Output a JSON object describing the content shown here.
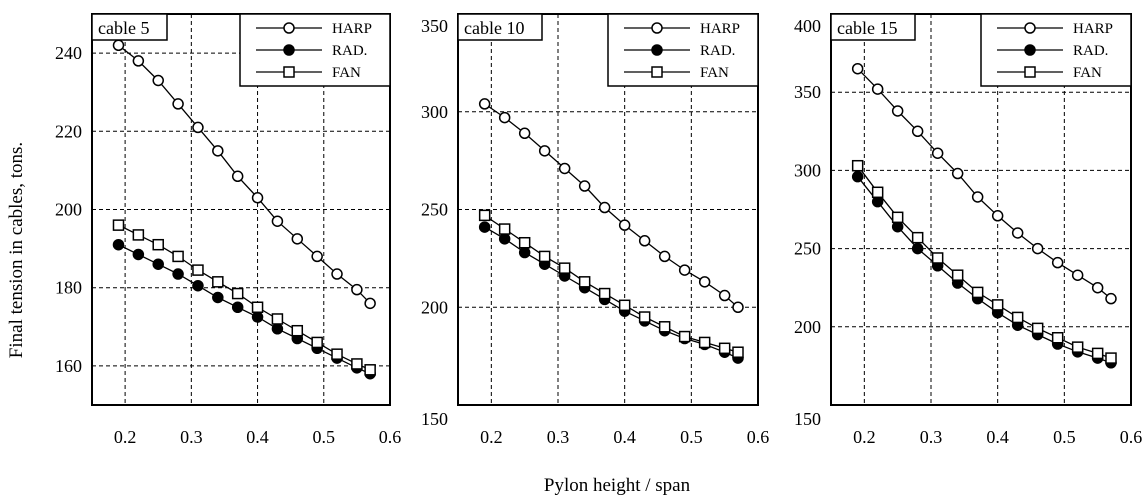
{
  "figure": {
    "ylabel": "Final tension in cables, tons.",
    "xlabel": "Pylon height / span"
  },
  "chart_data": [
    {
      "type": "line",
      "title": "cable 5",
      "xlim": [
        0.15,
        0.6
      ],
      "ylim": [
        150,
        250
      ],
      "xticks": [
        "0.2",
        "0.3",
        "0.4",
        "0.5",
        "0.6"
      ],
      "yticks": [
        "160",
        "180",
        "200",
        "220",
        "240"
      ],
      "grid": true,
      "legend": "top-right",
      "x": [
        0.19,
        0.22,
        0.25,
        0.28,
        0.31,
        0.34,
        0.37,
        0.4,
        0.43,
        0.46,
        0.49,
        0.52,
        0.55,
        0.57
      ],
      "series": [
        {
          "name": "HARP",
          "marker": "open-circle",
          "values": [
            242,
            238,
            233,
            227,
            221,
            215,
            208.5,
            203,
            197,
            192.5,
            188,
            183.5,
            179.5,
            176
          ]
        },
        {
          "name": "RAD.",
          "marker": "filled-circle",
          "values": [
            191,
            188.5,
            186,
            183.5,
            180.5,
            177.5,
            175,
            172.5,
            169.5,
            167,
            164.5,
            162,
            159.5,
            158
          ]
        },
        {
          "name": "FAN",
          "marker": "open-square",
          "values": [
            196,
            193.5,
            191,
            188,
            184.5,
            181.5,
            178.5,
            175,
            172,
            169,
            166,
            163,
            160.5,
            159
          ]
        }
      ]
    },
    {
      "type": "line",
      "title": "cable 10",
      "xlim": [
        0.15,
        0.6
      ],
      "ylim": [
        150,
        350
      ],
      "xticks": [
        "0.2",
        "0.3",
        "0.4",
        "0.5",
        "0.6"
      ],
      "yticks": [
        "150",
        "200",
        "250",
        "300",
        "350"
      ],
      "grid": true,
      "legend": "top-right",
      "x": [
        0.19,
        0.22,
        0.25,
        0.28,
        0.31,
        0.34,
        0.37,
        0.4,
        0.43,
        0.46,
        0.49,
        0.52,
        0.55,
        0.57
      ],
      "series": [
        {
          "name": "HARP",
          "marker": "open-circle",
          "values": [
            304,
            297,
            289,
            280,
            271,
            262,
            251,
            242,
            234,
            226,
            219,
            213,
            206,
            200
          ]
        },
        {
          "name": "RAD.",
          "marker": "filled-circle",
          "values": [
            241,
            235,
            228,
            222,
            216,
            210,
            204,
            198,
            193,
            188,
            184,
            181,
            177,
            174
          ]
        },
        {
          "name": "FAN",
          "marker": "open-square",
          "values": [
            247,
            240,
            233,
            226,
            220,
            213,
            207,
            201,
            195,
            190,
            185,
            182,
            179,
            177
          ]
        }
      ]
    },
    {
      "type": "line",
      "title": "cable 15",
      "xlim": [
        0.15,
        0.6
      ],
      "ylim": [
        150,
        400
      ],
      "xticks": [
        "0.2",
        "0.3",
        "0.4",
        "0.5",
        "0.6"
      ],
      "yticks": [
        "150",
        "200",
        "250",
        "300",
        "350",
        "400"
      ],
      "grid": true,
      "legend": "top-right",
      "x": [
        0.19,
        0.22,
        0.25,
        0.28,
        0.31,
        0.34,
        0.37,
        0.4,
        0.43,
        0.46,
        0.49,
        0.52,
        0.55,
        0.57
      ],
      "series": [
        {
          "name": "HARP",
          "marker": "open-circle",
          "values": [
            365,
            352,
            338,
            325,
            311,
            298,
            283,
            271,
            260,
            250,
            241,
            233,
            225,
            218
          ]
        },
        {
          "name": "RAD.",
          "marker": "filled-circle",
          "values": [
            296,
            280,
            264,
            250,
            239,
            228,
            218,
            209,
            201,
            195,
            189,
            184,
            180,
            177
          ]
        },
        {
          "name": "FAN",
          "marker": "open-square",
          "values": [
            303,
            286,
            270,
            257,
            244,
            233,
            222,
            214,
            206,
            199,
            193,
            187,
            183,
            180
          ]
        }
      ]
    }
  ]
}
